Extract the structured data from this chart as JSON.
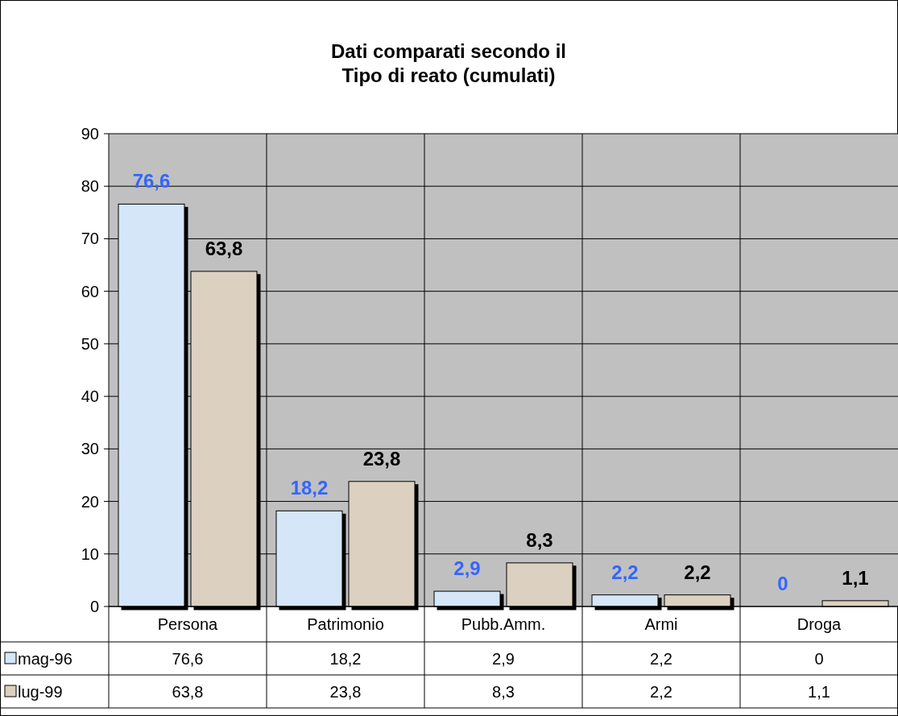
{
  "chart_data": {
    "type": "bar",
    "title": "Dati comparati secondo il\nTipo di reato (cumulati)",
    "categories": [
      "Persona",
      "Patrimonio",
      "Pubb.Amm.",
      "Armi",
      "Droga"
    ],
    "series": [
      {
        "name": "mag-96",
        "color": "#d4e6f8",
        "values": [
          76.6,
          18.2,
          2.9,
          2.2,
          0
        ],
        "value_labels": [
          "76,6",
          "18,2",
          "2,9",
          "2,2",
          "0"
        ]
      },
      {
        "name": "lug-99",
        "color": "#dcd0c0",
        "values": [
          63.8,
          23.8,
          8.3,
          2.2,
          1.1
        ],
        "value_labels": [
          "63,8",
          "23,8",
          "8,3",
          "2,2",
          "1,1"
        ]
      }
    ],
    "ylim": [
      0,
      90
    ],
    "yticks": [
      0,
      10,
      20,
      30,
      40,
      50,
      60,
      70,
      80,
      90
    ],
    "grid": true,
    "legend": "bottom"
  }
}
